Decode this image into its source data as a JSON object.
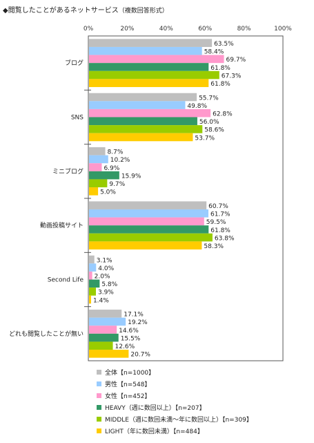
{
  "chart_data": {
    "type": "bar",
    "orientation": "horizontal",
    "title": "◆閲覧したことがあるネットサービス",
    "subtitle": "（複数回答形式）",
    "xlim": [
      0,
      100
    ],
    "x_ticks": [
      "0%",
      "20%",
      "40%",
      "60%",
      "80%",
      "100%"
    ],
    "categories": [
      "ブログ",
      "SNS",
      "ミニブログ",
      "動画投稿サイト",
      "Second Life",
      "どれも閲覧したことが無い"
    ],
    "series": [
      {
        "name": "全体【n=1000】",
        "color": "#bfbfbf",
        "values": [
          63.5,
          55.7,
          8.7,
          60.7,
          3.1,
          17.1
        ]
      },
      {
        "name": "男性【n=548】",
        "color": "#99ccff",
        "values": [
          58.4,
          49.8,
          10.2,
          61.7,
          4.0,
          19.2
        ]
      },
      {
        "name": "女性【n=452】",
        "color": "#ff99cc",
        "values": [
          69.7,
          62.8,
          6.9,
          59.5,
          2.0,
          14.6
        ]
      },
      {
        "name": "HEAVY（週に数回以上）【n=207】",
        "color": "#339966",
        "values": [
          61.8,
          56.0,
          15.9,
          61.8,
          5.8,
          15.5
        ]
      },
      {
        "name": "MIDDLE（週に数回未満～年に数回以上）【n=309】",
        "color": "#99cc00",
        "values": [
          67.3,
          58.6,
          9.7,
          63.8,
          3.9,
          12.6
        ]
      },
      {
        "name": "LIGHT（年に数回未満）【n=484】",
        "color": "#ffcc00",
        "values": [
          61.8,
          53.7,
          5.0,
          58.3,
          1.4,
          20.7
        ]
      }
    ],
    "value_format": "{v}%",
    "grid": false,
    "legend_position": "bottom-left"
  }
}
